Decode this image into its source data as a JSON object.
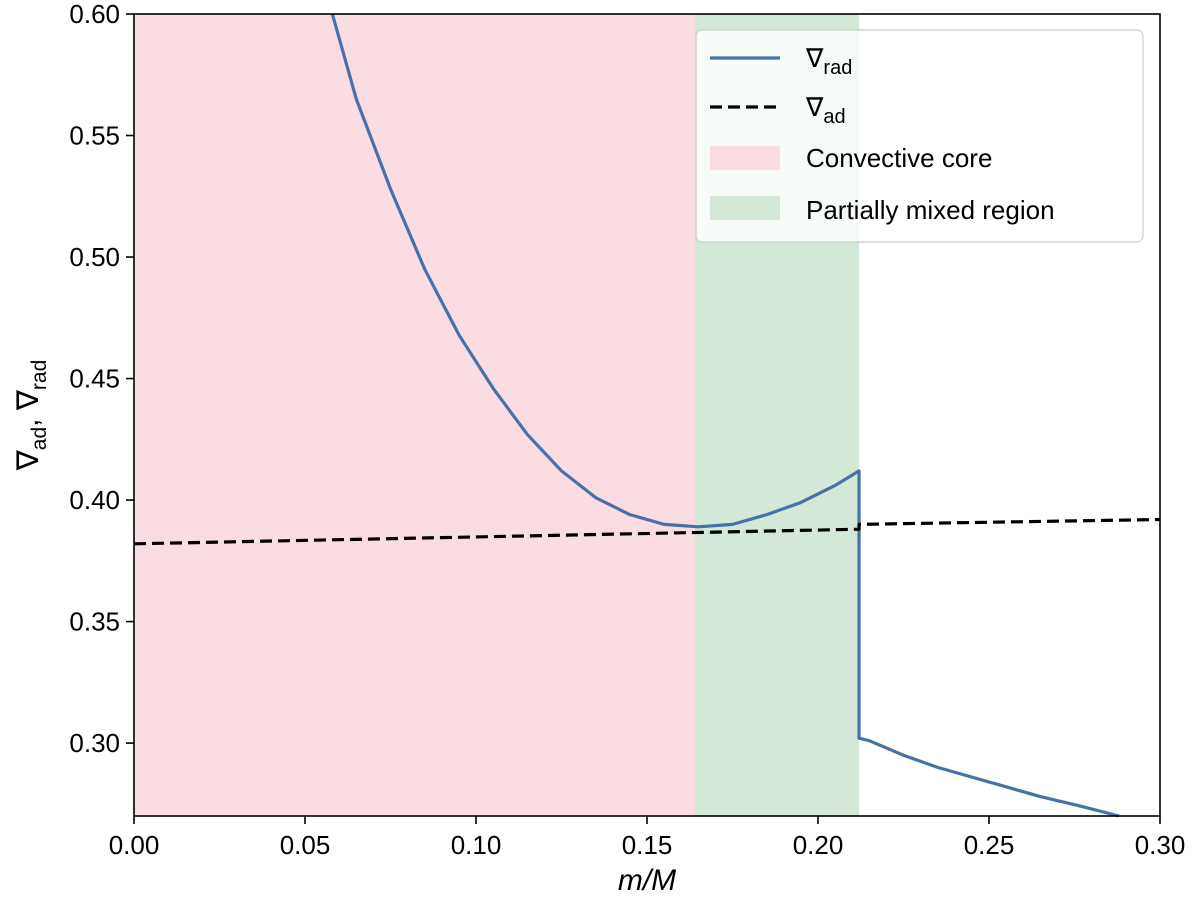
{
  "chart_data": {
    "type": "line",
    "xlabel": "m/M",
    "ylabel_parts": [
      "∇",
      "ad",
      ", ∇",
      "rad"
    ],
    "xlim": [
      0.0,
      0.3
    ],
    "ylim": [
      0.27,
      0.6
    ],
    "xticks": [
      0.0,
      0.05,
      0.1,
      0.15,
      0.2,
      0.25,
      0.3
    ],
    "xtick_labels": [
      "0.00",
      "0.05",
      "0.10",
      "0.15",
      "0.20",
      "0.25",
      "0.30"
    ],
    "yticks": [
      0.3,
      0.35,
      0.4,
      0.45,
      0.5,
      0.55,
      0.6
    ],
    "ytick_labels": [
      "0.30",
      "0.35",
      "0.40",
      "0.45",
      "0.50",
      "0.55",
      "0.60"
    ],
    "grid": false,
    "legend_position": "top-right",
    "regions": [
      {
        "name": "Convective core",
        "x0": 0.0,
        "x1": 0.164,
        "color": "#fadde2"
      },
      {
        "name": "Partially mixed region",
        "x0": 0.164,
        "x1": 0.212,
        "color": "#d3e8d6"
      }
    ],
    "series": [
      {
        "name_symbol": "∇",
        "name_sub": "rad",
        "style": "solid",
        "color": "#4672a8",
        "points": [
          [
            0.058,
            0.6
          ],
          [
            0.065,
            0.565
          ],
          [
            0.075,
            0.528
          ],
          [
            0.085,
            0.495
          ],
          [
            0.095,
            0.468
          ],
          [
            0.105,
            0.446
          ],
          [
            0.115,
            0.427
          ],
          [
            0.125,
            0.412
          ],
          [
            0.135,
            0.401
          ],
          [
            0.145,
            0.394
          ],
          [
            0.155,
            0.39
          ],
          [
            0.165,
            0.389
          ],
          [
            0.175,
            0.39
          ],
          [
            0.185,
            0.394
          ],
          [
            0.195,
            0.399
          ],
          [
            0.205,
            0.406
          ],
          [
            0.212,
            0.412
          ],
          [
            0.212,
            0.302
          ],
          [
            0.215,
            0.301
          ],
          [
            0.225,
            0.295
          ],
          [
            0.235,
            0.29
          ],
          [
            0.245,
            0.286
          ],
          [
            0.255,
            0.282
          ],
          [
            0.265,
            0.278
          ],
          [
            0.277,
            0.274
          ],
          [
            0.288,
            0.27
          ]
        ]
      },
      {
        "name_symbol": "∇",
        "name_sub": "ad",
        "style": "dashed",
        "color": "#000000",
        "points": [
          [
            0.0,
            0.382
          ],
          [
            0.212,
            0.388
          ],
          [
            0.212,
            0.39
          ],
          [
            0.3,
            0.392
          ]
        ]
      }
    ]
  }
}
